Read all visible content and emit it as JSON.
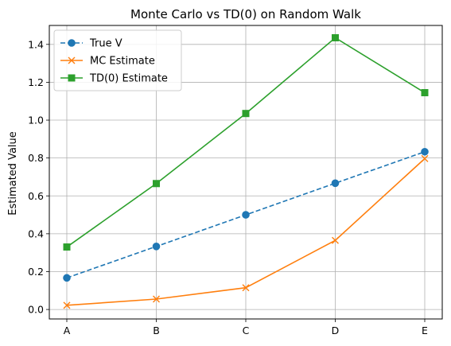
{
  "chart_data": {
    "type": "line",
    "title": "Monte Carlo vs TD(0) on Random Walk",
    "xlabel": "",
    "ylabel": "Estimated Value",
    "categories": [
      "A",
      "B",
      "C",
      "D",
      "E"
    ],
    "ylim": [
      -0.05,
      1.5
    ],
    "yticks": [
      0.0,
      0.2,
      0.4,
      0.6,
      0.8,
      1.0,
      1.2,
      1.4
    ],
    "ytick_labels": [
      "0.0",
      "0.2",
      "0.4",
      "0.6",
      "0.8",
      "1.0",
      "1.2",
      "1.4"
    ],
    "grid": true,
    "legend_position": "top-left",
    "series": [
      {
        "name": "True V",
        "values": [
          0.167,
          0.333,
          0.5,
          0.667,
          0.833
        ],
        "color": "#1f77b4",
        "line_style": "dashed",
        "marker": "circle"
      },
      {
        "name": "MC Estimate",
        "values": [
          0.022,
          0.055,
          0.115,
          0.365,
          0.797
        ],
        "color": "#ff7f0e",
        "line_style": "solid",
        "marker": "x"
      },
      {
        "name": "TD(0) Estimate",
        "values": [
          0.33,
          0.665,
          1.035,
          1.435,
          1.145
        ],
        "color": "#2ca02c",
        "line_style": "solid",
        "marker": "square"
      }
    ]
  }
}
